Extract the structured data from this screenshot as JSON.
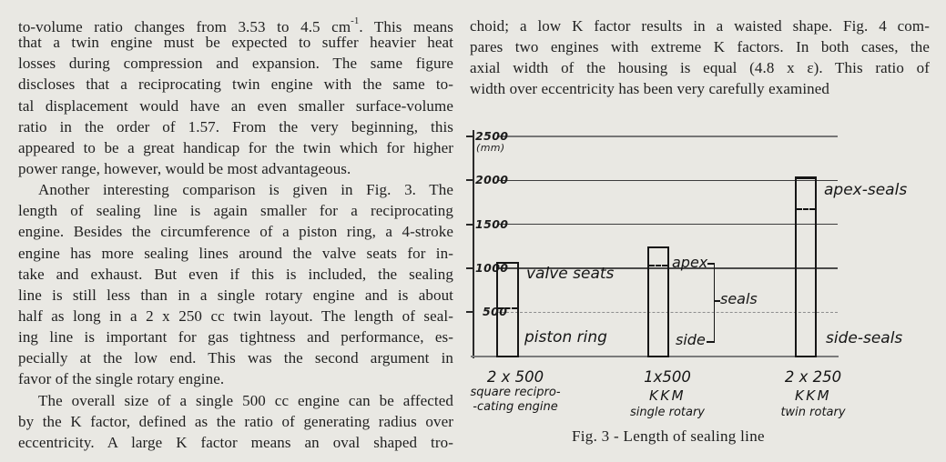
{
  "page": {
    "background": "#e9e8e3",
    "ink": "#1f1f1f"
  },
  "left_column": {
    "line1": {
      "pre": "to-volume ratio changes from 3.53 to 4.5 cm",
      "sup": "-1",
      "post": ". This means"
    },
    "lines": [
      {
        "text": "that a twin engine must be expected to suffer heavier heat",
        "justify": true,
        "indent": false
      },
      {
        "text": "losses during compression and expansion. The same figure",
        "justify": true,
        "indent": false
      },
      {
        "text": "discloses that a reciprocating twin engine with the same to-",
        "justify": true,
        "indent": false
      },
      {
        "text": "tal displacement would have an even smaller surface-volume",
        "justify": true,
        "indent": false
      },
      {
        "text": "ratio in the order of 1.57. From the very beginning, this",
        "justify": true,
        "indent": false
      },
      {
        "text": "appeared to be a great handicap for the twin which for higher",
        "justify": true,
        "indent": false
      },
      {
        "text": "power range, however, would be most advantageous.",
        "justify": false,
        "indent": false
      },
      {
        "text": "Another interesting comparison is given in Fig. 3. The",
        "justify": true,
        "indent": true
      },
      {
        "text": "length of sealing line is again smaller for a reciprocating",
        "justify": true,
        "indent": false
      },
      {
        "text": "engine. Besides the circumference of a piston ring, a 4-stroke",
        "justify": true,
        "indent": false
      },
      {
        "text": "engine has more sealing lines around the valve seats for in-",
        "justify": true,
        "indent": false
      },
      {
        "text": "take and exhaust. But even if this is included, the sealing",
        "justify": true,
        "indent": false
      },
      {
        "text": "line is still less than in a single rotary engine and is about",
        "justify": true,
        "indent": false
      },
      {
        "text": "half as long in a 2 x 250 cc twin layout. The length of seal-",
        "justify": true,
        "indent": false
      },
      {
        "text": "ing line is important for gas tightness and performance, es-",
        "justify": true,
        "indent": false
      },
      {
        "text": "pecially at the low end. This was the second argument in",
        "justify": true,
        "indent": false
      },
      {
        "text": "favor of the single rotary engine.",
        "justify": false,
        "indent": false
      },
      {
        "text": "The overall size of a single 500 cc engine can be affected",
        "justify": true,
        "indent": true
      },
      {
        "text": "by the K factor, defined as the ratio of generating radius over",
        "justify": true,
        "indent": false
      },
      {
        "text": "eccentricity. A large K factor means an oval shaped tro-",
        "justify": true,
        "indent": false
      }
    ]
  },
  "right_column": {
    "lines": [
      {
        "text": "choid; a low K factor results in a waisted shape. Fig. 4 com-",
        "justify": true,
        "indent": false
      },
      {
        "text": "pares two engines with extreme K factors. In both cases, the",
        "justify": true,
        "indent": false
      },
      {
        "text": "axial width of the housing is equal (4.8 x ε). This ratio of",
        "justify": true,
        "indent": false
      },
      {
        "text": "width over eccentricity has been very carefully examined",
        "justify": false,
        "indent": false
      }
    ]
  },
  "chart_data": {
    "type": "bar",
    "title": "Fig. 3 - Length of sealing line",
    "ylabel": "",
    "xlabel": "",
    "unit": "(mm)",
    "yticks": [
      2500,
      2000,
      1500,
      1000,
      500
    ],
    "ylim": [
      0,
      2560
    ],
    "grid": true,
    "legend_position": "none",
    "bars": [
      {
        "category_lines": [
          "2 x 500",
          "square recipro-",
          "-cating engine"
        ],
        "total_mm": 1070,
        "divider_mm": 545,
        "upper_label": "valve seats",
        "lower_label": "piston ring"
      },
      {
        "category_lines": [
          "1x500",
          "KKM",
          "single rotary"
        ],
        "total_mm": 1250,
        "divider_mm": 1030,
        "upper_label": "apex",
        "lower_label": "side",
        "bracket_label": "seals"
      },
      {
        "category_lines": [
          "2 x 250",
          "KKM",
          "twin rotary"
        ],
        "total_mm": 2050,
        "divider_mm": 1670,
        "upper_label": "apex-seals",
        "lower_label": "side-seals"
      }
    ]
  }
}
